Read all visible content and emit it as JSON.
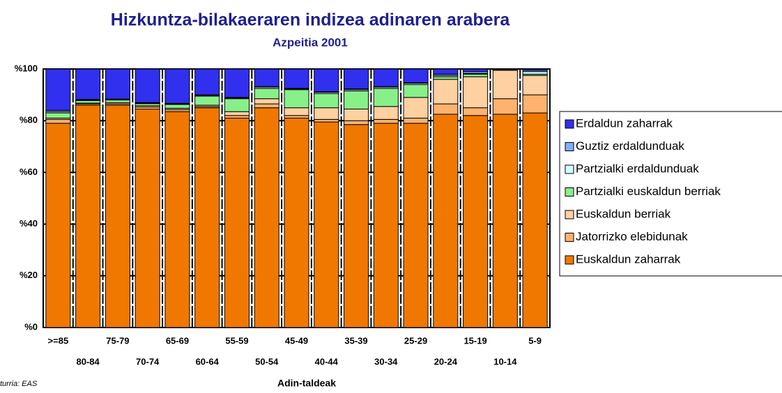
{
  "chart_data": {
    "type": "stacked_bar",
    "title": "Hizkuntza-bilakaeraren indizea adinaren arabera",
    "subtitle": "Azpeitia 2001",
    "x_label": "Adin-taldeak",
    "source": "turria: EAS",
    "categories": [
      ">=85",
      "80-84",
      "75-79",
      "70-74",
      "65-69",
      "60-64",
      "55-59",
      "50-54",
      "45-49",
      "40-44",
      "35-39",
      "30-34",
      "25-29",
      "20-24",
      "15-19",
      "10-14",
      "5-9"
    ],
    "series": [
      {
        "name": "Euskaldun zaharrak",
        "color": "#f07800",
        "values": [
          79,
          86,
          86,
          84.5,
          83.5,
          85,
          81,
          85,
          81,
          79.5,
          78.5,
          79,
          79,
          82.5,
          82,
          82.5,
          83
        ]
      },
      {
        "name": "Jatorrizko elebidunak",
        "color": "#ffb26e",
        "values": [
          1.5,
          0.5,
          0.5,
          0.8,
          0.8,
          0.5,
          1,
          1.5,
          1,
          1,
          1.5,
          1.5,
          2,
          4,
          3,
          6,
          7
        ]
      },
      {
        "name": "Euskaldun berriak",
        "color": "#ffd0a0",
        "values": [
          0.5,
          0.3,
          0.5,
          0.5,
          0.5,
          0.5,
          1.5,
          2,
          3,
          4.5,
          4.5,
          5,
          8,
          9.5,
          12,
          11,
          7.5
        ]
      },
      {
        "name": "Partzialki euskaldun berriak",
        "color": "#88f088",
        "values": [
          2,
          1,
          1,
          0.8,
          1.5,
          3.5,
          5,
          4,
          7,
          5.5,
          7,
          7,
          5,
          1,
          1,
          0.2,
          0.5
        ]
      },
      {
        "name": "Partzialki erdaldunduak",
        "color": "#d0ffff",
        "values": [
          0.5,
          0.2,
          0.2,
          0.2,
          0.2,
          0.3,
          0.3,
          0.5,
          0.3,
          0.5,
          0.5,
          0.5,
          0.5,
          0.5,
          0.3,
          0,
          1
        ]
      },
      {
        "name": "Guztiz erdaldunduak",
        "color": "#7fb0ff",
        "values": [
          0.5,
          0.2,
          0.2,
          0.2,
          0.2,
          0.2,
          0.2,
          0.2,
          0.2,
          0.2,
          0.3,
          0.2,
          0.2,
          0.5,
          0.7,
          0.1,
          0.5
        ]
      },
      {
        "name": "Erdaldun zaharrak",
        "color": "#3030ee",
        "values": [
          16,
          11.8,
          11.6,
          13,
          13.3,
          10,
          11,
          6.8,
          7.5,
          8.8,
          7.7,
          6.8,
          5.3,
          2,
          1,
          0.2,
          0.5
        ]
      }
    ],
    "ylim": [
      0,
      100
    ],
    "yticks": [
      {
        "value": 0,
        "label": "%0"
      },
      {
        "value": 20,
        "label": "%20"
      },
      {
        "value": 40,
        "label": "%40"
      },
      {
        "value": 60,
        "label": "%60"
      },
      {
        "value": 80,
        "label": "%80"
      },
      {
        "value": 100,
        "label": "%100"
      }
    ],
    "grid": true
  }
}
